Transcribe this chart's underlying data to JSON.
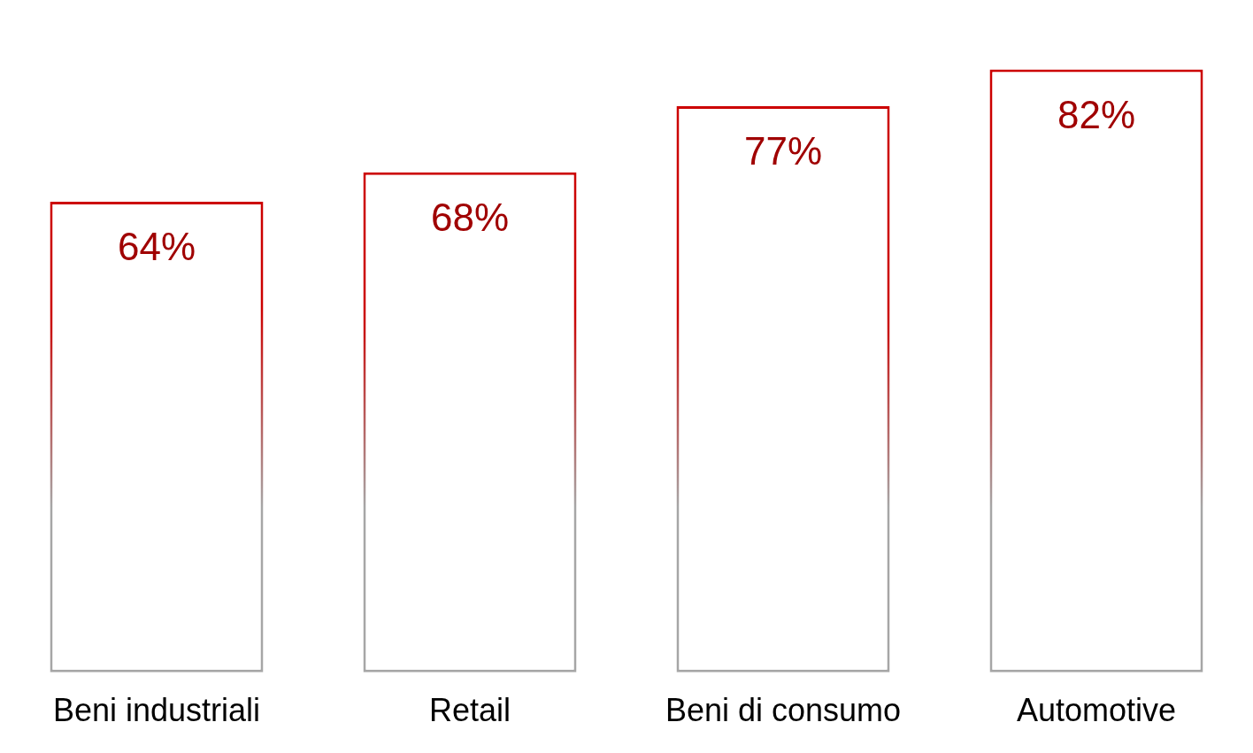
{
  "chart_data": {
    "type": "bar",
    "categories": [
      "Beni industriali",
      "Retail",
      "Beni di consumo",
      "Automotive"
    ],
    "values": [
      64,
      68,
      77,
      82
    ],
    "value_labels": [
      "64%",
      "68%",
      "77%",
      "82%"
    ],
    "color": "#cc0000",
    "grid": false,
    "legend": false
  }
}
